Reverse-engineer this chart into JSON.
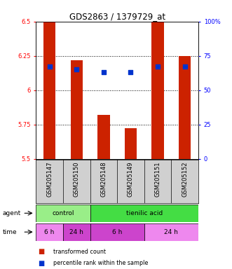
{
  "title": "GDS2863 / 1379729_at",
  "samples": [
    "GSM205147",
    "GSM205150",
    "GSM205148",
    "GSM205149",
    "GSM205151",
    "GSM205152"
  ],
  "bar_values": [
    6.5,
    6.22,
    5.82,
    5.72,
    6.5,
    6.25
  ],
  "ymin": 5.5,
  "ymax": 6.5,
  "yticks": [
    5.5,
    5.75,
    6.0,
    6.25,
    6.5
  ],
  "ytick_labels": [
    "5.5",
    "5.75",
    "6",
    "6.25",
    "6.5"
  ],
  "right_yticks": [
    0,
    25,
    50,
    75,
    100
  ],
  "right_ytick_labels": [
    "0",
    "25",
    "50",
    "75",
    "100%"
  ],
  "percentile_values": [
    6.17,
    6.15,
    6.13,
    6.13,
    6.17,
    6.17
  ],
  "bar_color": "#cc2200",
  "dot_color": "#0033cc",
  "agent_color_control": "#99ee88",
  "agent_color_tienilic": "#44dd44",
  "time_color_6h_1": "#ee88ee",
  "time_color_24h_1": "#cc44cc",
  "time_color_6h_2": "#cc44cc",
  "time_color_24h_2": "#ee88ee",
  "bg_color": "#d0d0d0",
  "legend_bar_color": "#cc2200",
  "legend_dot_color": "#0033cc",
  "title_fontsize": 8.5,
  "tick_fontsize": 6,
  "label_fontsize": 6.5,
  "sample_fontsize": 6
}
